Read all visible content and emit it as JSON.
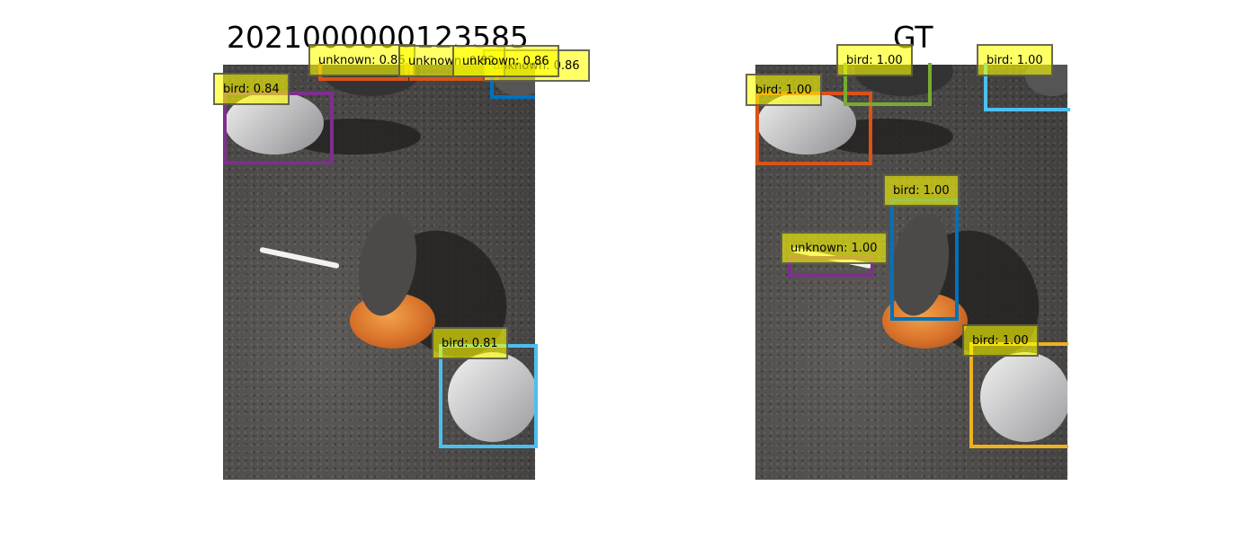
{
  "panels": {
    "left": {
      "title": "2021000000123585"
    },
    "right": {
      "title": "GT"
    }
  },
  "detections": {
    "left": [
      {
        "label": "bird: 0.84",
        "color": "#7e2f8e"
      },
      {
        "label": "unknown: 0.86",
        "color": "#d95319"
      },
      {
        "label": "unknown: 0.86",
        "color": "#d95319"
      },
      {
        "label": "unknown: 0.82",
        "color": "#d95319"
      },
      {
        "label": "unknown: 0.86",
        "color": "#0072bd"
      },
      {
        "label": "bird: 0.81",
        "color": "#4dbeee"
      }
    ],
    "right": [
      {
        "label": "bird: 1.00",
        "color": "#d95319"
      },
      {
        "label": "bird: 1.00",
        "color": "#77ac30"
      },
      {
        "label": "bird: 1.00",
        "color": "#4dbeee"
      },
      {
        "label": "bird: 1.00",
        "color": "#0072bd"
      },
      {
        "label": "unknown: 1.00",
        "color": "#7e2f8e"
      },
      {
        "label": "bird: 1.00",
        "color": "#edb120"
      }
    ]
  }
}
